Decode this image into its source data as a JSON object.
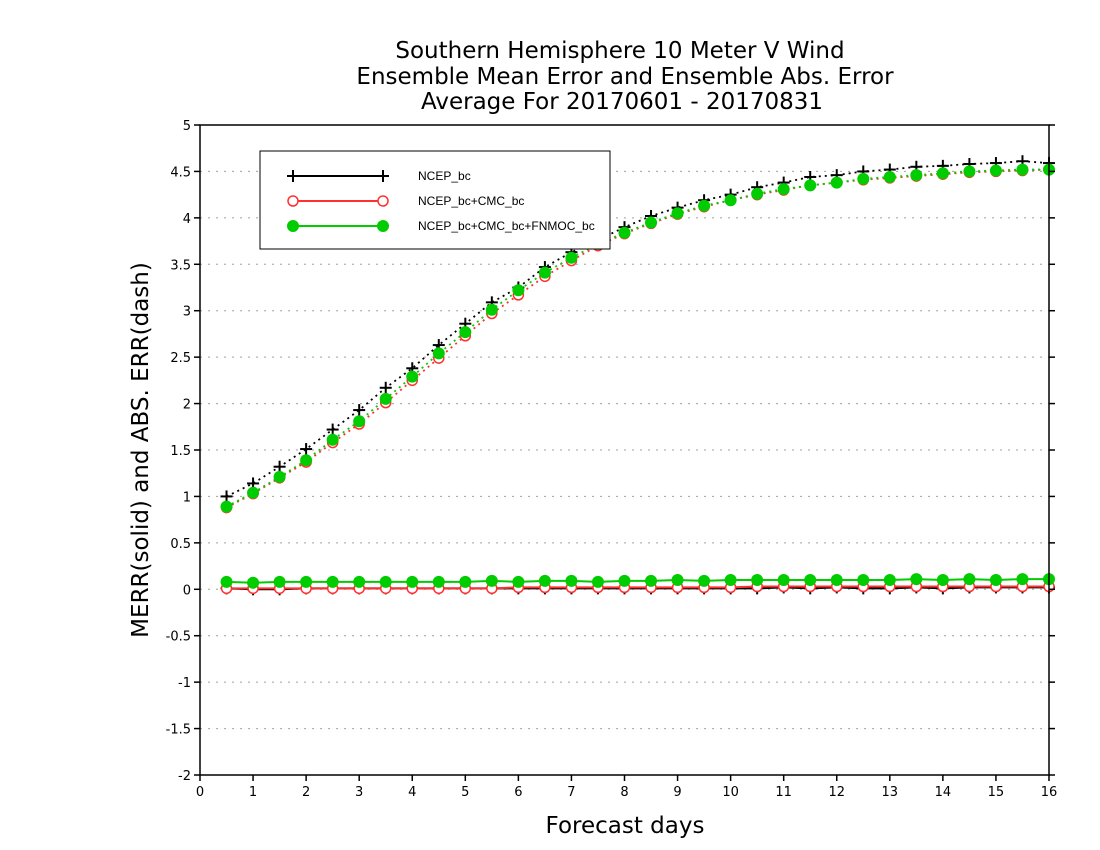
{
  "chart_data": {
    "type": "line",
    "title": [
      "Southern Hemisphere 10 Meter V Wind",
      "Ensemble Mean Error and Ensemble Abs. Error",
      "Average For 20170601 - 20170831"
    ],
    "xlabel": "Forecast days",
    "ylabel": "MERR(solid) and ABS. ERR(dash)",
    "xlim": [
      0,
      16
    ],
    "ylim": [
      -2,
      5
    ],
    "x_ticks": [
      0,
      1,
      2,
      3,
      4,
      5,
      6,
      7,
      8,
      9,
      10,
      11,
      12,
      13,
      14,
      15,
      16
    ],
    "x_tick_labels": [
      "0",
      "1",
      "2",
      "3",
      "4",
      "5",
      "6",
      "7",
      "8",
      "9",
      "10",
      "11",
      "12",
      "13",
      "14",
      "15",
      "16"
    ],
    "y_ticks": [
      -2,
      -1.5,
      -1,
      -0.5,
      0,
      0.5,
      1,
      1.5,
      2,
      2.5,
      3,
      3.5,
      4,
      4.5,
      5
    ],
    "y_tick_labels": [
      "-2",
      "-1.5",
      "-1",
      "-0.5",
      "0",
      "0.5",
      "1",
      "1.5",
      "2",
      "2.5",
      "3",
      "3.5",
      "4",
      "4.5",
      "5"
    ],
    "grid": "horizontal dotted",
    "legend_position": "top-left",
    "x": [
      0.5,
      1,
      1.5,
      2,
      2.5,
      3,
      3.5,
      4,
      4.5,
      5,
      5.5,
      6,
      6.5,
      7,
      7.5,
      8,
      8.5,
      9,
      9.5,
      10,
      10.5,
      11,
      11.5,
      12,
      12.5,
      13,
      13.5,
      14,
      14.5,
      15,
      15.5,
      16
    ],
    "series": [
      {
        "name": "NCEP_bc",
        "color": "#000000",
        "marker": "plus",
        "merr": [
          0.01,
          0.0,
          0.0,
          0.01,
          0.01,
          0.01,
          0.01,
          0.01,
          0.01,
          0.01,
          0.01,
          0.01,
          0.01,
          0.01,
          0.01,
          0.01,
          0.01,
          0.01,
          0.01,
          0.01,
          0.01,
          0.02,
          0.01,
          0.02,
          0.01,
          0.01,
          0.02,
          0.01,
          0.02,
          0.02,
          0.02,
          0.02
        ],
        "abs_err": [
          1.0,
          1.14,
          1.32,
          1.51,
          1.72,
          1.93,
          2.17,
          2.38,
          2.63,
          2.86,
          3.09,
          3.25,
          3.47,
          3.63,
          3.76,
          3.9,
          4.02,
          4.11,
          4.19,
          4.25,
          4.33,
          4.38,
          4.44,
          4.46,
          4.5,
          4.52,
          4.55,
          4.56,
          4.58,
          4.59,
          4.61,
          4.59
        ]
      },
      {
        "name": "NCEP_bc+CMC_bc",
        "color": "#ff3030",
        "marker": "open-circle",
        "merr": [
          0.01,
          0.01,
          0.01,
          0.01,
          0.01,
          0.01,
          0.01,
          0.01,
          0.01,
          0.01,
          0.01,
          0.02,
          0.02,
          0.02,
          0.02,
          0.02,
          0.02,
          0.02,
          0.02,
          0.02,
          0.03,
          0.03,
          0.03,
          0.03,
          0.03,
          0.03,
          0.03,
          0.03,
          0.03,
          0.03,
          0.03,
          0.03
        ],
        "abs_err": [
          0.88,
          1.03,
          1.2,
          1.37,
          1.58,
          1.78,
          2.01,
          2.25,
          2.49,
          2.73,
          2.97,
          3.17,
          3.37,
          3.54,
          3.7,
          3.83,
          3.94,
          4.04,
          4.12,
          4.19,
          4.25,
          4.3,
          4.35,
          4.38,
          4.41,
          4.43,
          4.45,
          4.47,
          4.49,
          4.5,
          4.51,
          4.52
        ]
      },
      {
        "name": "NCEP_bc+CMC_bc+FNMOC_bc",
        "color": "#00cc00",
        "marker": "filled-circle",
        "merr": [
          0.08,
          0.07,
          0.08,
          0.08,
          0.08,
          0.08,
          0.08,
          0.08,
          0.08,
          0.08,
          0.09,
          0.08,
          0.09,
          0.09,
          0.08,
          0.09,
          0.09,
          0.1,
          0.09,
          0.1,
          0.1,
          0.1,
          0.1,
          0.1,
          0.1,
          0.1,
          0.11,
          0.1,
          0.11,
          0.1,
          0.11,
          0.11
        ],
        "abs_err": [
          0.89,
          1.04,
          1.21,
          1.39,
          1.61,
          1.81,
          2.05,
          2.29,
          2.54,
          2.77,
          3.01,
          3.22,
          3.41,
          3.57,
          3.72,
          3.84,
          3.95,
          4.05,
          4.13,
          4.19,
          4.26,
          4.31,
          4.35,
          4.38,
          4.42,
          4.44,
          4.46,
          4.48,
          4.5,
          4.51,
          4.52,
          4.52
        ]
      }
    ]
  }
}
